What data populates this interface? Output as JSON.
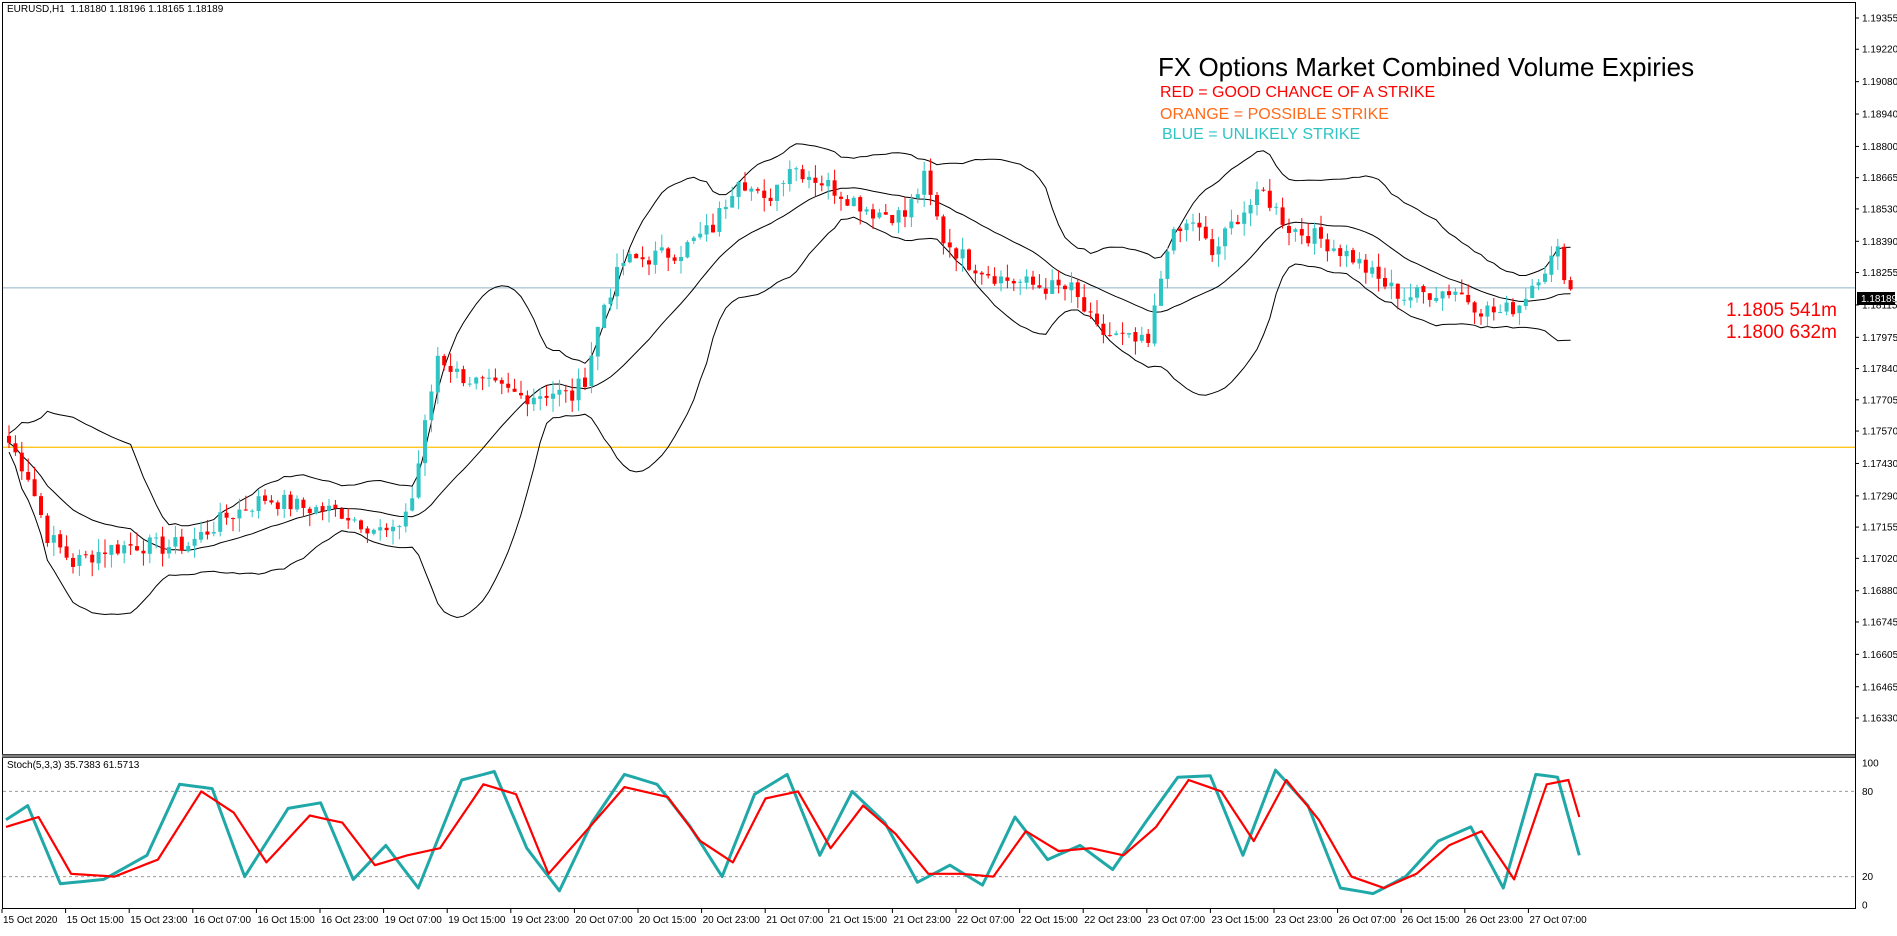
{
  "chart": {
    "symbol_header": "EURUSD,H1  1.18180 1.18196 1.18165 1.18189",
    "current_price_label": "1.18189",
    "y_ticks": [
      "1.19355",
      "1.19220",
      "1.19080",
      "1.18940",
      "1.18800",
      "1.18665",
      "1.18530",
      "1.18390",
      "1.18255",
      "1.18115",
      "1.17975",
      "1.17840",
      "1.17705",
      "1.17570",
      "1.17430",
      "1.17290",
      "1.17155",
      "1.17020",
      "1.16880",
      "1.16745",
      "1.16605",
      "1.16465",
      "1.16330"
    ],
    "x_ticks": [
      "15 Oct 2020",
      "15 Oct 15:00",
      "15 Oct 23:00",
      "16 Oct 07:00",
      "16 Oct 15:00",
      "16 Oct 23:00",
      "19 Oct 07:00",
      "19 Oct 15:00",
      "19 Oct 23:00",
      "20 Oct 07:00",
      "20 Oct 15:00",
      "20 Oct 23:00",
      "21 Oct 07:00",
      "21 Oct 15:00",
      "21 Oct 23:00",
      "22 Oct 07:00",
      "22 Oct 15:00",
      "22 Oct 23:00",
      "23 Oct 07:00",
      "23 Oct 15:00",
      "23 Oct 23:00",
      "26 Oct 07:00",
      "26 Oct 15:00",
      "26 Oct 23:00",
      "27 Oct 07:00"
    ],
    "colors": {
      "bull": "#2ec4c4",
      "bear": "#ff0000",
      "bands": "#000000",
      "price_line": "#8fb3c8",
      "level_line": "#ffc000",
      "stoch_main": "#20a8a8",
      "stoch_signal": "#ff0000"
    }
  },
  "annotation": {
    "title": "FX Options Market Combined Volume Expiries",
    "red_text": "RED = GOOD CHANCE OF A STRIKE",
    "orange_text": "ORANGE = POSSIBLE STRIKE",
    "blue_text": "BLUE = UNLIKELY STRIKE",
    "red_color": "#ff0000",
    "orange_color": "#ff6a1a",
    "blue_color": "#2ec4c4"
  },
  "expiries": [
    {
      "label": "1.1805 541m",
      "strike": 1.1805,
      "volume": "541m",
      "color": "#ff0000"
    },
    {
      "label": "1.1800 632m",
      "strike": 1.18,
      "volume": "632m",
      "color": "#ff0000"
    }
  ],
  "stoch": {
    "header": "Stoch(5,3,3) 35.7383 61.5713",
    "y_ticks": [
      "100",
      "80",
      "20",
      "0"
    ]
  },
  "chart_data": {
    "type": "candlestick",
    "symbol": "EURUSD",
    "timeframe": "H1",
    "current_price": 1.18189,
    "horizontal_level": 1.175,
    "ylim": [
      1.1626,
      1.1945
    ],
    "waypoints": [
      [
        0,
        1.1752
      ],
      [
        3,
        1.1738
      ],
      [
        6,
        1.1712
      ],
      [
        10,
        1.17
      ],
      [
        15,
        1.1706
      ],
      [
        20,
        1.1708
      ],
      [
        24,
        1.1707
      ],
      [
        28,
        1.1708
      ],
      [
        34,
        1.172
      ],
      [
        40,
        1.1728
      ],
      [
        46,
        1.1724
      ],
      [
        52,
        1.1722
      ],
      [
        57,
        1.1715
      ],
      [
        60,
        1.1712
      ],
      [
        63,
        1.1728
      ],
      [
        67,
        1.179
      ],
      [
        70,
        1.1782
      ],
      [
        73,
        1.1778
      ],
      [
        80,
        1.1772
      ],
      [
        85,
        1.1774
      ],
      [
        88,
        1.1772
      ],
      [
        90,
        1.178
      ],
      [
        93,
        1.1812
      ],
      [
        96,
        1.183
      ],
      [
        100,
        1.1832
      ],
      [
        105,
        1.1835
      ],
      [
        110,
        1.1845
      ],
      [
        114,
        1.1868
      ],
      [
        118,
        1.1855
      ],
      [
        122,
        1.1872
      ],
      [
        125,
        1.1868
      ],
      [
        130,
        1.186
      ],
      [
        135,
        1.1852
      ],
      [
        140,
        1.185
      ],
      [
        143,
        1.1866
      ],
      [
        146,
        1.184
      ],
      [
        150,
        1.183
      ],
      [
        155,
        1.1823
      ],
      [
        160,
        1.182
      ],
      [
        166,
        1.1818
      ],
      [
        170,
        1.18
      ],
      [
        175,
        1.1796
      ],
      [
        178,
        1.1794
      ],
      [
        181,
        1.1838
      ],
      [
        185,
        1.1848
      ],
      [
        188,
        1.1833
      ],
      [
        192,
        1.185
      ],
      [
        196,
        1.186
      ],
      [
        200,
        1.1845
      ],
      [
        205,
        1.184
      ],
      [
        210,
        1.1832
      ],
      [
        214,
        1.1822
      ],
      [
        218,
        1.1815
      ],
      [
        222,
        1.1817
      ],
      [
        226,
        1.1818
      ],
      [
        230,
        1.181
      ],
      [
        233,
        1.1808
      ],
      [
        236,
        1.1812
      ],
      [
        239,
        1.1825
      ],
      [
        242,
        1.1834
      ],
      [
        244,
        1.1818
      ]
    ],
    "stochastic": {
      "params": "5,3,3",
      "main": 35.7383,
      "signal": 61.5713,
      "levels": [
        80,
        20
      ],
      "main_waypoints": [
        [
          0,
          60
        ],
        [
          2,
          70
        ],
        [
          5,
          15
        ],
        [
          9,
          18
        ],
        [
          13,
          35
        ],
        [
          16,
          85
        ],
        [
          19,
          82
        ],
        [
          22,
          20
        ],
        [
          26,
          68
        ],
        [
          29,
          72
        ],
        [
          32,
          18
        ],
        [
          35,
          42
        ],
        [
          38,
          12
        ],
        [
          42,
          88
        ],
        [
          45,
          94
        ],
        [
          48,
          40
        ],
        [
          51,
          10
        ],
        [
          54,
          58
        ],
        [
          57,
          92
        ],
        [
          60,
          85
        ],
        [
          63,
          56
        ],
        [
          66,
          20
        ],
        [
          69,
          78
        ],
        [
          72,
          92
        ],
        [
          75,
          35
        ],
        [
          78,
          80
        ],
        [
          81,
          58
        ],
        [
          84,
          16
        ],
        [
          87,
          28
        ],
        [
          90,
          14
        ],
        [
          93,
          62
        ],
        [
          96,
          32
        ],
        [
          99,
          42
        ],
        [
          102,
          25
        ],
        [
          105,
          58
        ],
        [
          108,
          90
        ],
        [
          111,
          91
        ],
        [
          114,
          35
        ],
        [
          117,
          95
        ],
        [
          120,
          70
        ],
        [
          123,
          12
        ],
        [
          126,
          8
        ],
        [
          129,
          20
        ],
        [
          132,
          45
        ],
        [
          135,
          55
        ],
        [
          138,
          12
        ],
        [
          141,
          92
        ],
        [
          143,
          90
        ],
        [
          145,
          35
        ]
      ],
      "signal_waypoints": [
        [
          0,
          55
        ],
        [
          3,
          62
        ],
        [
          6,
          22
        ],
        [
          10,
          20
        ],
        [
          14,
          32
        ],
        [
          18,
          80
        ],
        [
          21,
          65
        ],
        [
          24,
          30
        ],
        [
          28,
          63
        ],
        [
          31,
          58
        ],
        [
          34,
          28
        ],
        [
          37,
          35
        ],
        [
          40,
          40
        ],
        [
          44,
          85
        ],
        [
          47,
          78
        ],
        [
          50,
          22
        ],
        [
          53,
          48
        ],
        [
          57,
          83
        ],
        [
          61,
          76
        ],
        [
          64,
          45
        ],
        [
          67,
          30
        ],
        [
          70,
          75
        ],
        [
          73,
          80
        ],
        [
          76,
          40
        ],
        [
          79,
          70
        ],
        [
          82,
          50
        ],
        [
          85,
          22
        ],
        [
          88,
          22
        ],
        [
          91,
          20
        ],
        [
          94,
          52
        ],
        [
          97,
          38
        ],
        [
          100,
          40
        ],
        [
          103,
          35
        ],
        [
          106,
          55
        ],
        [
          109,
          88
        ],
        [
          112,
          80
        ],
        [
          115,
          45
        ],
        [
          118,
          88
        ],
        [
          121,
          60
        ],
        [
          124,
          20
        ],
        [
          127,
          12
        ],
        [
          130,
          22
        ],
        [
          133,
          42
        ],
        [
          136,
          52
        ],
        [
          139,
          18
        ],
        [
          142,
          85
        ],
        [
          144,
          88
        ],
        [
          145,
          62
        ]
      ]
    }
  }
}
